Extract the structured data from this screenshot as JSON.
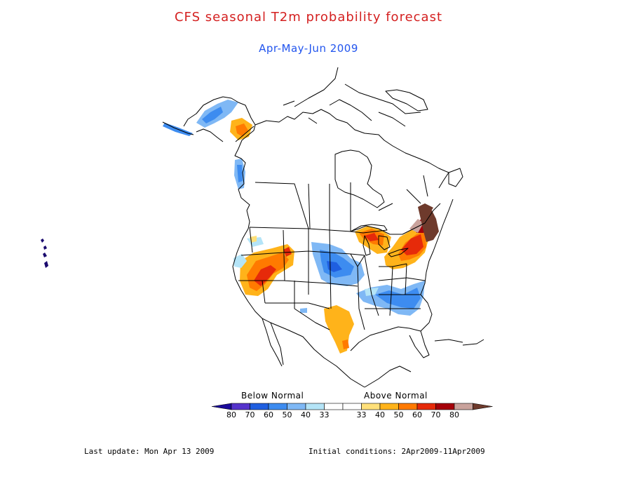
{
  "title": "CFS seasonal T2m probability forecast",
  "subtitle": "Apr-May-Jun 2009",
  "legend": {
    "below_label": "Below Normal",
    "above_label": "Above Normal",
    "ticks": [
      "80",
      "70",
      "60",
      "50",
      "40",
      "33",
      "33",
      "40",
      "50",
      "60",
      "70",
      "80"
    ],
    "colors": {
      "below_80": "#1a0a9a",
      "below_70": "#5533cc",
      "below_60": "#1f5fe0",
      "below_50": "#3d8cf0",
      "below_40": "#7fb8f5",
      "below_33": "#b4e4f7",
      "normal": "#ffffff",
      "above_33": "#ffe07a",
      "above_40": "#ffb31a",
      "above_50": "#ff7a00",
      "above_60": "#e62a0a",
      "above_70": "#a5000a",
      "above_80": "#c9a29c",
      "above_max": "#6e3a2c"
    }
  },
  "footer": {
    "last_update": "Last update: Mon Apr 13 2009",
    "initial_conditions": "Initial conditions: 2Apr2009-11Apr2009"
  }
}
